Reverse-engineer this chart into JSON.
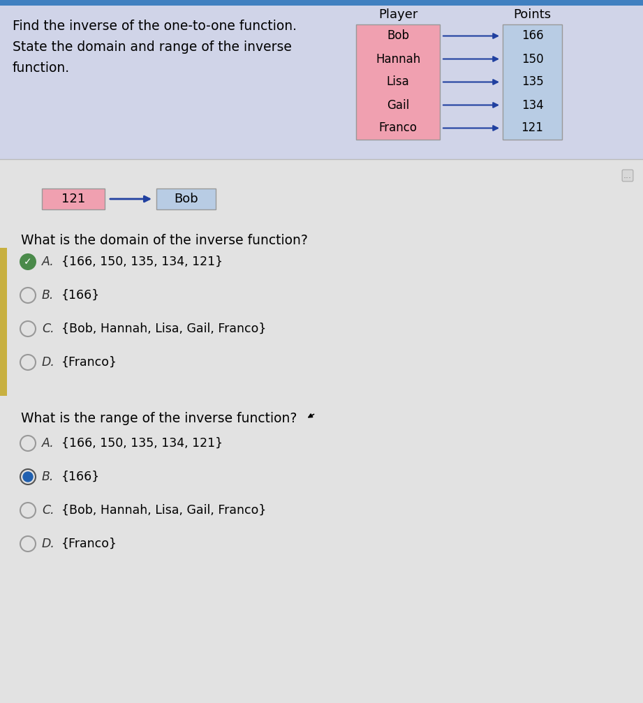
{
  "bg_color": "#e2e2e2",
  "top_section_bg": "#d0d4e8",
  "bottom_section_bg": "#e2e2e2",
  "intro_text_line1": "Find the inverse of the one-to-one function.",
  "intro_text_line2": "State the domain and range of the inverse",
  "intro_text_line3": "function.",
  "player_label": "Player",
  "points_label": "Points",
  "players": [
    "Bob",
    "Hannah",
    "Lisa",
    "Gail",
    "Franco"
  ],
  "points": [
    "166",
    "150",
    "135",
    "134",
    "121"
  ],
  "player_box_color": "#f0a0b0",
  "points_box_color": "#b8cce4",
  "arrow_color": "#2040a0",
  "inverse_left_val": "121",
  "inverse_right_val": "Bob",
  "inverse_left_box_color": "#f0a0b0",
  "inverse_right_box_color": "#b8cce4",
  "domain_question": "What is the domain of the inverse function?",
  "range_question": "What is the range of the inverse function?",
  "options_A": "{166, 150, 135, 134, 121}",
  "options_B": "{166}",
  "options_C": "{Bob, Hannah, Lisa, Gail, Franco}",
  "options_D": "{Franco}",
  "domain_selected": "A",
  "range_selected": "B",
  "radio_selected_color": "#2060b0",
  "radio_unselected_color": "#999999",
  "separator_color": "#bbbbbb",
  "tan_strip_color": "#c8b040",
  "top_blue_bar_color": "#4080c0",
  "top_blue_bar_height": 8
}
